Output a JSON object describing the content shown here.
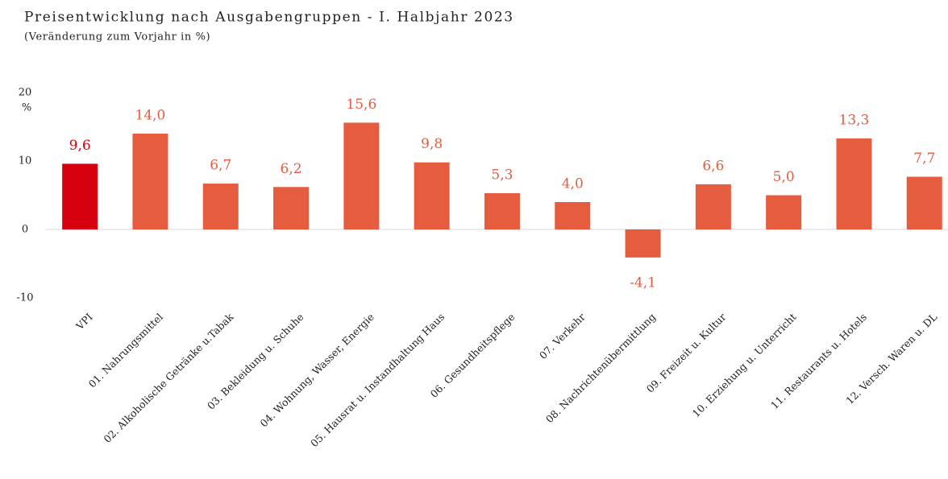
{
  "chart_data": {
    "type": "bar",
    "title": "Preisentwicklung  nach Ausgabengruppen  - I. Halbjahr 2023",
    "subtitle": "(Veränderung zum Vorjahr in %)",
    "y_axis_label": "%",
    "categories": [
      "VPI",
      "01. Nahrungsmittel",
      "02. Alkoholische Getränke u.Tabak",
      "03. Bekleidung u. Schuhe",
      "04. Wohnung, Wasser, Energie",
      "05. Hausrat u. Instandhaltung Haus",
      "06. Gesundheitspflege",
      "07. Verkehr",
      "08. Nachrichtenübermittlung",
      "09. Freizeit u. Kultur",
      "10. Erziehung u. Unterricht",
      "11. Restaurants u. Hotels",
      "12. Versch. Waren u. DL"
    ],
    "values": [
      9.6,
      14.0,
      6.7,
      6.2,
      15.6,
      9.8,
      5.3,
      4.0,
      -4.1,
      6.6,
      5.0,
      13.3,
      7.7
    ],
    "value_labels": [
      "9,6",
      "14,0",
      "6,7",
      "6,2",
      "15,6",
      "9,8",
      "5,3",
      "4,0",
      "-4,1",
      "6,6",
      "5,0",
      "13,3",
      "7,7"
    ],
    "colors": [
      "#d7000f",
      "#e55c3f",
      "#e55c3f",
      "#e55c3f",
      "#e55c3f",
      "#e55c3f",
      "#e55c3f",
      "#e55c3f",
      "#e55c3f",
      "#e55c3f",
      "#e55c3f",
      "#e55c3f",
      "#e55c3f"
    ],
    "ylim": [
      -10,
      20
    ],
    "yticks": [
      -10,
      0,
      10,
      20
    ],
    "grid": false
  }
}
